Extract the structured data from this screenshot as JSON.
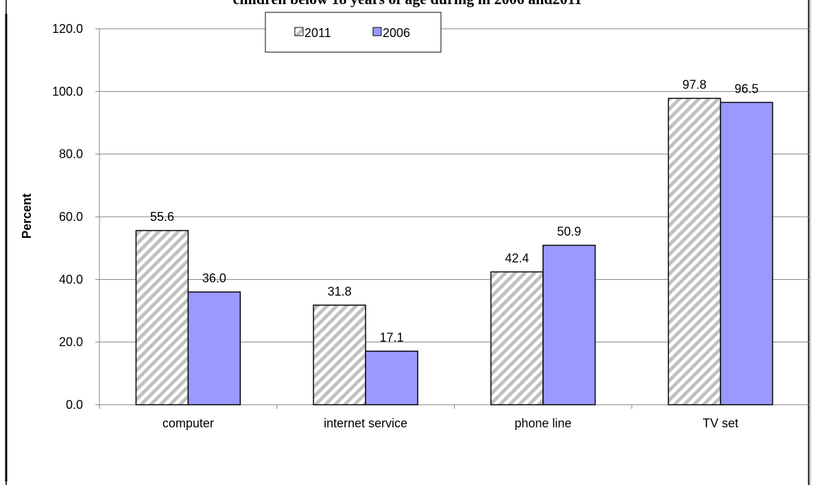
{
  "chart_data": {
    "type": "bar",
    "title": "children below 18 years of age during in 2006 and2011",
    "ylabel": "Percent",
    "xlabel": "",
    "ylim": [
      0,
      120
    ],
    "yticks": [
      "0.0",
      "20.0",
      "40.0",
      "60.0",
      "80.0",
      "100.0",
      "120.0"
    ],
    "categories": [
      "computer",
      "internet service",
      "phone line",
      "TV set"
    ],
    "series": [
      {
        "name": "2011",
        "values": [
          55.6,
          31.8,
          42.4,
          97.8
        ],
        "labels": [
          "55.6",
          "31.8",
          "42.4",
          "97.8"
        ],
        "color": "#c0c0c0",
        "pattern": "diagonal-stripes"
      },
      {
        "name": "2006",
        "values": [
          36.0,
          17.1,
          50.9,
          96.5
        ],
        "labels": [
          "36.0",
          "17.1",
          "50.9",
          "96.5"
        ],
        "color": "#9999ff",
        "pattern": "solid"
      }
    ],
    "grid": true,
    "legend_position": "top-center"
  }
}
